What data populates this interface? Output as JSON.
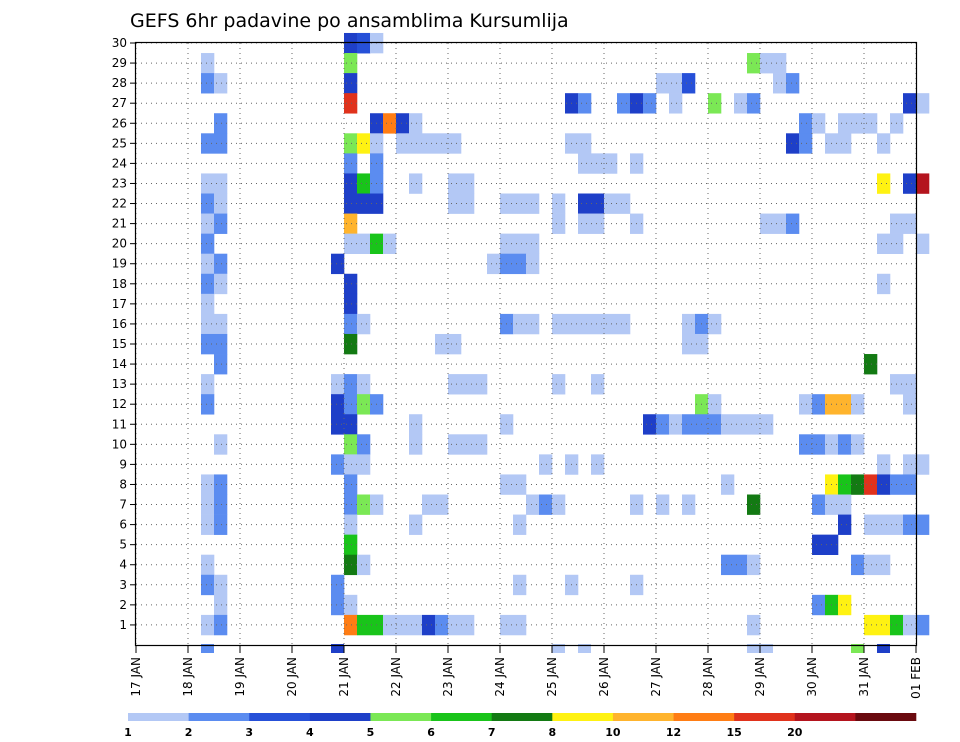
{
  "chart_data": {
    "type": "heatmap",
    "title": "GEFS 6hr padavine po ansamblima Kursumlija",
    "xlabel": "",
    "ylabel": "",
    "x_ticks": [
      "17 JAN",
      "18 JAN",
      "19 JAN",
      "20 JAN",
      "21 JAN",
      "22 JAN",
      "23 JAN",
      "24 JAN",
      "25 JAN",
      "26 JAN",
      "27 JAN",
      "28 JAN",
      "29 JAN",
      "30 JAN",
      "31 JAN",
      "01 FEB"
    ],
    "y_ticks": [
      "1",
      "2",
      "3",
      "4",
      "5",
      "6",
      "7",
      "8",
      "9",
      "10",
      "11",
      "12",
      "13",
      "14",
      "15",
      "16",
      "17",
      "18",
      "19",
      "20",
      "21",
      "22",
      "23",
      "24",
      "25",
      "26",
      "27",
      "28",
      "29",
      "30"
    ],
    "xlim_days": [
      0,
      15
    ],
    "ylim": [
      0,
      30
    ],
    "step_hours": 6,
    "grid": true,
    "colorbar": {
      "labels": [
        "1",
        "2",
        "3",
        "4",
        "5",
        "6",
        "7",
        "8",
        "10",
        "12",
        "15",
        "20"
      ],
      "colors": [
        "#b3c8f5",
        "#5b8cf0",
        "#2650d8",
        "#1e3fc8",
        "#7be855",
        "#19c41a",
        "#137a13",
        "#fff212",
        "#ffb42d",
        "#ff7d14",
        "#e0321c",
        "#b4141e",
        "#6a0a0f"
      ]
    },
    "series": [
      {
        "member": 30,
        "cells": [
          [
            4,
            2,
            3
          ],
          [
            4.25,
            1,
            2
          ],
          [
            4.5,
            1,
            0
          ]
        ]
      },
      {
        "member": 29,
        "cells": [
          [
            1.25,
            1,
            0
          ],
          [
            4,
            1,
            4
          ],
          [
            11.75,
            1,
            4
          ],
          [
            12,
            2,
            0
          ]
        ]
      },
      {
        "member": 28,
        "cells": [
          [
            1.25,
            1,
            1
          ],
          [
            1.5,
            1,
            0
          ],
          [
            4,
            1,
            3
          ],
          [
            10,
            2,
            0
          ],
          [
            10.5,
            1,
            2
          ],
          [
            12.25,
            1,
            0
          ],
          [
            12.5,
            1,
            1
          ]
        ]
      },
      {
        "member": 27,
        "cells": [
          [
            4,
            1,
            10
          ],
          [
            8.25,
            1,
            3
          ],
          [
            8.5,
            1,
            1
          ],
          [
            9.25,
            1,
            1
          ],
          [
            9.5,
            1,
            3
          ],
          [
            9.75,
            1,
            1
          ],
          [
            10.25,
            1,
            0
          ],
          [
            11,
            1,
            4
          ],
          [
            11.5,
            1,
            0
          ],
          [
            11.75,
            1,
            1
          ],
          [
            14.75,
            1,
            3
          ],
          [
            15,
            1,
            0
          ]
        ]
      },
      {
        "member": 26,
        "cells": [
          [
            1.5,
            1,
            1
          ],
          [
            4.5,
            1,
            3
          ],
          [
            4.75,
            1,
            9
          ],
          [
            5,
            1,
            3
          ],
          [
            5.25,
            1,
            0
          ],
          [
            12.75,
            1,
            1
          ],
          [
            13,
            1,
            0
          ],
          [
            13.5,
            3,
            0
          ],
          [
            14.5,
            1,
            0
          ]
        ]
      },
      {
        "member": 25,
        "cells": [
          [
            1.25,
            2,
            1
          ],
          [
            4,
            1,
            4
          ],
          [
            4.25,
            1,
            7
          ],
          [
            4.5,
            1,
            0
          ],
          [
            5,
            5,
            0
          ],
          [
            8.25,
            2,
            0
          ],
          [
            12.5,
            1,
            3
          ],
          [
            12.75,
            1,
            1
          ],
          [
            13.25,
            2,
            0
          ],
          [
            14.25,
            1,
            0
          ]
        ]
      },
      {
        "member": 24,
        "cells": [
          [
            4,
            1,
            1
          ],
          [
            4.5,
            1,
            1
          ],
          [
            8.5,
            3,
            0
          ],
          [
            9.5,
            1,
            0
          ]
        ]
      },
      {
        "member": 23,
        "cells": [
          [
            1.25,
            2,
            0
          ],
          [
            4,
            1,
            3
          ],
          [
            4.25,
            1,
            5
          ],
          [
            4.5,
            1,
            1
          ],
          [
            5.25,
            1,
            0
          ],
          [
            6,
            2,
            0
          ],
          [
            14.25,
            1,
            7
          ],
          [
            14.75,
            1,
            3
          ],
          [
            15,
            1,
            11
          ]
        ]
      },
      {
        "member": 22,
        "cells": [
          [
            1.25,
            1,
            1
          ],
          [
            1.5,
            1,
            0
          ],
          [
            4,
            3,
            3
          ],
          [
            6,
            2,
            0
          ],
          [
            7,
            3,
            0
          ],
          [
            8,
            1,
            0
          ],
          [
            8.5,
            2,
            3
          ],
          [
            9,
            2,
            0
          ]
        ]
      },
      {
        "member": 21,
        "cells": [
          [
            1.25,
            1,
            0
          ],
          [
            1.5,
            1,
            1
          ],
          [
            4,
            1,
            8
          ],
          [
            8,
            1,
            0
          ],
          [
            8.5,
            2,
            0
          ],
          [
            9.5,
            1,
            0
          ],
          [
            12,
            2,
            0
          ],
          [
            12.5,
            1,
            1
          ],
          [
            14.5,
            2,
            0
          ]
        ]
      },
      {
        "member": 20,
        "cells": [
          [
            1.25,
            1,
            1
          ],
          [
            4,
            2,
            0
          ],
          [
            4.5,
            1,
            5
          ],
          [
            4.75,
            1,
            0
          ],
          [
            7,
            3,
            0
          ],
          [
            14.25,
            2,
            0
          ],
          [
            15,
            1,
            0
          ]
        ]
      },
      {
        "member": 19,
        "cells": [
          [
            1.25,
            1,
            0
          ],
          [
            1.5,
            1,
            1
          ],
          [
            3.75,
            1,
            3
          ],
          [
            6.75,
            1,
            0
          ],
          [
            7,
            2,
            1
          ],
          [
            7.5,
            1,
            0
          ]
        ]
      },
      {
        "member": 18,
        "cells": [
          [
            1.25,
            1,
            1
          ],
          [
            1.5,
            1,
            0
          ],
          [
            4,
            1,
            3
          ],
          [
            14.25,
            1,
            0
          ]
        ]
      },
      {
        "member": 17,
        "cells": [
          [
            1.25,
            1,
            0
          ],
          [
            4,
            1,
            3
          ]
        ]
      },
      {
        "member": 16,
        "cells": [
          [
            1.25,
            1,
            0
          ],
          [
            1.5,
            1,
            0
          ],
          [
            4,
            1,
            1
          ],
          [
            4.25,
            1,
            0
          ],
          [
            7,
            1,
            1
          ],
          [
            7.25,
            2,
            0
          ],
          [
            8,
            6,
            0
          ],
          [
            10.5,
            1,
            0
          ],
          [
            10.75,
            1,
            1
          ],
          [
            11,
            1,
            0
          ]
        ]
      },
      {
        "member": 15,
        "cells": [
          [
            1.25,
            2,
            1
          ],
          [
            4,
            1,
            6
          ],
          [
            5.75,
            2,
            0
          ],
          [
            10.5,
            2,
            0
          ]
        ]
      },
      {
        "member": 14,
        "cells": [
          [
            1.5,
            1,
            1
          ],
          [
            14,
            1,
            6
          ]
        ]
      },
      {
        "member": 13,
        "cells": [
          [
            1.25,
            1,
            0
          ],
          [
            3.75,
            1,
            0
          ],
          [
            4,
            1,
            1
          ],
          [
            4.25,
            1,
            0
          ],
          [
            6,
            3,
            0
          ],
          [
            8,
            1,
            0
          ],
          [
            8.75,
            1,
            0
          ],
          [
            14.5,
            2,
            0
          ]
        ]
      },
      {
        "member": 12,
        "cells": [
          [
            1.25,
            1,
            1
          ],
          [
            3.75,
            1,
            3
          ],
          [
            4,
            1,
            1
          ],
          [
            4.25,
            1,
            4
          ],
          [
            4.5,
            1,
            1
          ],
          [
            10.75,
            1,
            4
          ],
          [
            11,
            1,
            0
          ],
          [
            12.75,
            1,
            0
          ],
          [
            13,
            1,
            1
          ],
          [
            13.25,
            2,
            8
          ],
          [
            13.75,
            1,
            0
          ],
          [
            14.75,
            1,
            0
          ]
        ]
      },
      {
        "member": 11,
        "cells": [
          [
            3.75,
            2,
            3
          ],
          [
            5.25,
            1,
            0
          ],
          [
            7,
            1,
            0
          ],
          [
            9.75,
            1,
            3
          ],
          [
            10,
            1,
            1
          ],
          [
            10.25,
            1,
            0
          ],
          [
            10.5,
            3,
            1
          ],
          [
            11.25,
            4,
            0
          ]
        ]
      },
      {
        "member": 10,
        "cells": [
          [
            1.5,
            1,
            0
          ],
          [
            4,
            1,
            4
          ],
          [
            4.25,
            1,
            1
          ],
          [
            5.25,
            1,
            0
          ],
          [
            6,
            3,
            0
          ],
          [
            12.75,
            2,
            1
          ],
          [
            13.25,
            1,
            0
          ],
          [
            13.5,
            1,
            1
          ],
          [
            13.75,
            1,
            0
          ]
        ]
      },
      {
        "member": 9,
        "cells": [
          [
            3.75,
            1,
            1
          ],
          [
            4,
            2,
            0
          ],
          [
            7.75,
            1,
            0
          ],
          [
            8.25,
            1,
            0
          ],
          [
            8.75,
            1,
            0
          ],
          [
            14.25,
            1,
            0
          ],
          [
            14.75,
            2,
            0
          ]
        ]
      },
      {
        "member": 8,
        "cells": [
          [
            1.25,
            1,
            0
          ],
          [
            1.5,
            1,
            1
          ],
          [
            4,
            1,
            1
          ],
          [
            7,
            2,
            0
          ],
          [
            11.25,
            1,
            0
          ],
          [
            13.25,
            1,
            7
          ],
          [
            13.5,
            1,
            5
          ],
          [
            13.75,
            1,
            6
          ],
          [
            14,
            1,
            10
          ],
          [
            14.25,
            1,
            3
          ],
          [
            14.5,
            2,
            1
          ]
        ]
      },
      {
        "member": 7,
        "cells": [
          [
            1.25,
            1,
            0
          ],
          [
            1.5,
            1,
            1
          ],
          [
            4,
            1,
            1
          ],
          [
            4.25,
            1,
            4
          ],
          [
            4.5,
            1,
            0
          ],
          [
            5.5,
            2,
            0
          ],
          [
            7.5,
            1,
            0
          ],
          [
            7.75,
            1,
            1
          ],
          [
            8,
            1,
            0
          ],
          [
            9.5,
            1,
            0
          ],
          [
            10,
            1,
            0
          ],
          [
            10.5,
            1,
            0
          ],
          [
            11.75,
            1,
            6
          ],
          [
            13,
            1,
            1
          ],
          [
            13.25,
            2,
            0
          ]
        ]
      },
      {
        "member": 6,
        "cells": [
          [
            1.25,
            1,
            0
          ],
          [
            1.5,
            1,
            1
          ],
          [
            4,
            1,
            0
          ],
          [
            5.25,
            1,
            0
          ],
          [
            7.25,
            1,
            0
          ],
          [
            13.5,
            1,
            3
          ],
          [
            14,
            1,
            0
          ],
          [
            14.25,
            2,
            0
          ],
          [
            14.75,
            1,
            1
          ],
          [
            15,
            1,
            1
          ]
        ]
      },
      {
        "member": 5,
        "cells": [
          [
            4,
            1,
            5
          ],
          [
            13,
            2,
            3
          ]
        ]
      },
      {
        "member": 4,
        "cells": [
          [
            1.25,
            1,
            0
          ],
          [
            4,
            1,
            6
          ],
          [
            4.25,
            1,
            0
          ],
          [
            11.25,
            2,
            1
          ],
          [
            11.75,
            1,
            0
          ],
          [
            13.75,
            1,
            1
          ],
          [
            14,
            2,
            0
          ]
        ]
      },
      {
        "member": 3,
        "cells": [
          [
            1.25,
            1,
            1
          ],
          [
            1.5,
            1,
            0
          ],
          [
            3.75,
            1,
            1
          ],
          [
            7.25,
            1,
            0
          ],
          [
            8.25,
            1,
            0
          ],
          [
            9.5,
            1,
            0
          ]
        ]
      },
      {
        "member": 2,
        "cells": [
          [
            1.5,
            1,
            0
          ],
          [
            3.75,
            1,
            1
          ],
          [
            4,
            1,
            0
          ],
          [
            13,
            1,
            1
          ],
          [
            13.25,
            1,
            5
          ],
          [
            13.5,
            1,
            7
          ]
        ]
      },
      {
        "member": 1,
        "cells": [
          [
            1.25,
            1,
            0
          ],
          [
            1.5,
            1,
            1
          ],
          [
            4,
            1,
            9
          ],
          [
            4.25,
            2,
            5
          ],
          [
            4.75,
            3,
            0
          ],
          [
            5.5,
            1,
            3
          ],
          [
            5.75,
            1,
            1
          ],
          [
            6,
            2,
            0
          ],
          [
            7,
            2,
            0
          ],
          [
            11.75,
            1,
            0
          ],
          [
            14,
            2,
            7
          ],
          [
            14.5,
            1,
            5
          ],
          [
            14.75,
            1,
            0
          ],
          [
            15,
            1,
            1
          ]
        ]
      }
    ],
    "edge_cells": [
      [
        1.25,
        1,
        1
      ],
      [
        3.75,
        1,
        3
      ],
      [
        8,
        1,
        0
      ],
      [
        8.5,
        1,
        0
      ],
      [
        11.75,
        2,
        0
      ],
      [
        13.75,
        1,
        4
      ],
      [
        14.25,
        1,
        3
      ]
    ]
  }
}
